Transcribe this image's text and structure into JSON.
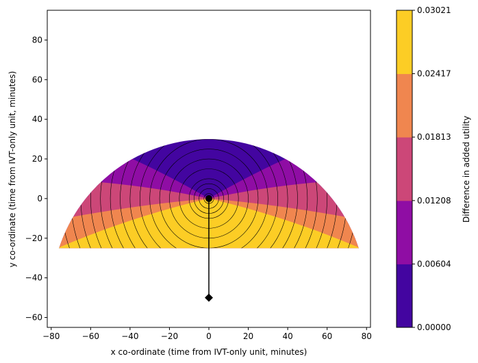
{
  "chart_data": {
    "type": "contour",
    "xlabel": "x co-ordinate (time from IVT-only unit, minutes)",
    "ylabel": "y co-ordinate (time from IVT-only unit, minutes)",
    "xlim": [
      -82,
      82
    ],
    "ylim": [
      -65,
      95
    ],
    "x_ticks": [
      "−80",
      "−60",
      "−40",
      "−20",
      "0",
      "20",
      "40",
      "60",
      "80"
    ],
    "x_tick_values": [
      -80,
      -60,
      -40,
      -20,
      0,
      20,
      40,
      60,
      80
    ],
    "y_ticks": [
      "−60",
      "−40",
      "−20",
      "0",
      "20",
      "40",
      "60",
      "80"
    ],
    "y_tick_values": [
      -60,
      -40,
      -20,
      0,
      20,
      40,
      60,
      80
    ],
    "region": {
      "shape": "half-disc clipped",
      "center": [
        0,
        0
      ],
      "radius": 80,
      "y_min": -25
    },
    "contour_circles": {
      "center": [
        0,
        0
      ],
      "radii": [
        2.5,
        5,
        7.5,
        10,
        15,
        20,
        25,
        30,
        35,
        40,
        45,
        50,
        55,
        60,
        65,
        70,
        75,
        80
      ]
    },
    "level_boundaries_deg": [
      {
        "inner_max": 30,
        "outer_max": 25
      },
      {
        "inner_max": 12,
        "outer_max": 7
      },
      {
        "inner_max": -5,
        "outer_max": -8
      },
      {
        "inner_max": -13,
        "outer_max": -18
      }
    ],
    "markers": {
      "ivt_unit": {
        "x": 0,
        "y": 0,
        "shape": "circle"
      },
      "mt_unit": {
        "x": 0,
        "y": -50,
        "shape": "diamond"
      }
    },
    "colorbar": {
      "label": "Difference in added utility",
      "ticks": [
        "0.00000",
        "0.00604",
        "0.01208",
        "0.01813",
        "0.02417",
        "0.03021"
      ],
      "levels": [
        0.0,
        0.00604,
        0.01208,
        0.01813,
        0.02417,
        0.03021
      ],
      "colors": [
        "#4305a0",
        "#8f0da4",
        "#cc4778",
        "#f0864f",
        "#fccd25"
      ]
    }
  }
}
